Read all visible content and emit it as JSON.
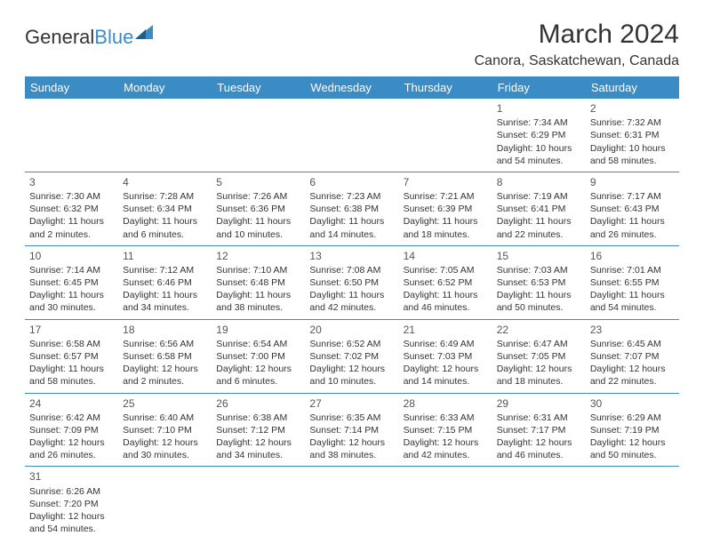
{
  "logo": {
    "part1": "General",
    "part2": "Blue"
  },
  "title": "March 2024",
  "location": "Canora, Saskatchewan, Canada",
  "colors": {
    "header_bg": "#3b8bc4",
    "header_text": "#ffffff",
    "border": "#3b8bc4",
    "text": "#333333",
    "background": "#ffffff"
  },
  "day_headers": [
    "Sunday",
    "Monday",
    "Tuesday",
    "Wednesday",
    "Thursday",
    "Friday",
    "Saturday"
  ],
  "weeks": [
    [
      null,
      null,
      null,
      null,
      null,
      {
        "n": "1",
        "sr": "Sunrise: 7:34 AM",
        "ss": "Sunset: 6:29 PM",
        "dl": "Daylight: 10 hours and 54 minutes."
      },
      {
        "n": "2",
        "sr": "Sunrise: 7:32 AM",
        "ss": "Sunset: 6:31 PM",
        "dl": "Daylight: 10 hours and 58 minutes."
      }
    ],
    [
      {
        "n": "3",
        "sr": "Sunrise: 7:30 AM",
        "ss": "Sunset: 6:32 PM",
        "dl": "Daylight: 11 hours and 2 minutes."
      },
      {
        "n": "4",
        "sr": "Sunrise: 7:28 AM",
        "ss": "Sunset: 6:34 PM",
        "dl": "Daylight: 11 hours and 6 minutes."
      },
      {
        "n": "5",
        "sr": "Sunrise: 7:26 AM",
        "ss": "Sunset: 6:36 PM",
        "dl": "Daylight: 11 hours and 10 minutes."
      },
      {
        "n": "6",
        "sr": "Sunrise: 7:23 AM",
        "ss": "Sunset: 6:38 PM",
        "dl": "Daylight: 11 hours and 14 minutes."
      },
      {
        "n": "7",
        "sr": "Sunrise: 7:21 AM",
        "ss": "Sunset: 6:39 PM",
        "dl": "Daylight: 11 hours and 18 minutes."
      },
      {
        "n": "8",
        "sr": "Sunrise: 7:19 AM",
        "ss": "Sunset: 6:41 PM",
        "dl": "Daylight: 11 hours and 22 minutes."
      },
      {
        "n": "9",
        "sr": "Sunrise: 7:17 AM",
        "ss": "Sunset: 6:43 PM",
        "dl": "Daylight: 11 hours and 26 minutes."
      }
    ],
    [
      {
        "n": "10",
        "sr": "Sunrise: 7:14 AM",
        "ss": "Sunset: 6:45 PM",
        "dl": "Daylight: 11 hours and 30 minutes."
      },
      {
        "n": "11",
        "sr": "Sunrise: 7:12 AM",
        "ss": "Sunset: 6:46 PM",
        "dl": "Daylight: 11 hours and 34 minutes."
      },
      {
        "n": "12",
        "sr": "Sunrise: 7:10 AM",
        "ss": "Sunset: 6:48 PM",
        "dl": "Daylight: 11 hours and 38 minutes."
      },
      {
        "n": "13",
        "sr": "Sunrise: 7:08 AM",
        "ss": "Sunset: 6:50 PM",
        "dl": "Daylight: 11 hours and 42 minutes."
      },
      {
        "n": "14",
        "sr": "Sunrise: 7:05 AM",
        "ss": "Sunset: 6:52 PM",
        "dl": "Daylight: 11 hours and 46 minutes."
      },
      {
        "n": "15",
        "sr": "Sunrise: 7:03 AM",
        "ss": "Sunset: 6:53 PM",
        "dl": "Daylight: 11 hours and 50 minutes."
      },
      {
        "n": "16",
        "sr": "Sunrise: 7:01 AM",
        "ss": "Sunset: 6:55 PM",
        "dl": "Daylight: 11 hours and 54 minutes."
      }
    ],
    [
      {
        "n": "17",
        "sr": "Sunrise: 6:58 AM",
        "ss": "Sunset: 6:57 PM",
        "dl": "Daylight: 11 hours and 58 minutes."
      },
      {
        "n": "18",
        "sr": "Sunrise: 6:56 AM",
        "ss": "Sunset: 6:58 PM",
        "dl": "Daylight: 12 hours and 2 minutes."
      },
      {
        "n": "19",
        "sr": "Sunrise: 6:54 AM",
        "ss": "Sunset: 7:00 PM",
        "dl": "Daylight: 12 hours and 6 minutes."
      },
      {
        "n": "20",
        "sr": "Sunrise: 6:52 AM",
        "ss": "Sunset: 7:02 PM",
        "dl": "Daylight: 12 hours and 10 minutes."
      },
      {
        "n": "21",
        "sr": "Sunrise: 6:49 AM",
        "ss": "Sunset: 7:03 PM",
        "dl": "Daylight: 12 hours and 14 minutes."
      },
      {
        "n": "22",
        "sr": "Sunrise: 6:47 AM",
        "ss": "Sunset: 7:05 PM",
        "dl": "Daylight: 12 hours and 18 minutes."
      },
      {
        "n": "23",
        "sr": "Sunrise: 6:45 AM",
        "ss": "Sunset: 7:07 PM",
        "dl": "Daylight: 12 hours and 22 minutes."
      }
    ],
    [
      {
        "n": "24",
        "sr": "Sunrise: 6:42 AM",
        "ss": "Sunset: 7:09 PM",
        "dl": "Daylight: 12 hours and 26 minutes."
      },
      {
        "n": "25",
        "sr": "Sunrise: 6:40 AM",
        "ss": "Sunset: 7:10 PM",
        "dl": "Daylight: 12 hours and 30 minutes."
      },
      {
        "n": "26",
        "sr": "Sunrise: 6:38 AM",
        "ss": "Sunset: 7:12 PM",
        "dl": "Daylight: 12 hours and 34 minutes."
      },
      {
        "n": "27",
        "sr": "Sunrise: 6:35 AM",
        "ss": "Sunset: 7:14 PM",
        "dl": "Daylight: 12 hours and 38 minutes."
      },
      {
        "n": "28",
        "sr": "Sunrise: 6:33 AM",
        "ss": "Sunset: 7:15 PM",
        "dl": "Daylight: 12 hours and 42 minutes."
      },
      {
        "n": "29",
        "sr": "Sunrise: 6:31 AM",
        "ss": "Sunset: 7:17 PM",
        "dl": "Daylight: 12 hours and 46 minutes."
      },
      {
        "n": "30",
        "sr": "Sunrise: 6:29 AM",
        "ss": "Sunset: 7:19 PM",
        "dl": "Daylight: 12 hours and 50 minutes."
      }
    ],
    [
      {
        "n": "31",
        "sr": "Sunrise: 6:26 AM",
        "ss": "Sunset: 7:20 PM",
        "dl": "Daylight: 12 hours and 54 minutes."
      },
      null,
      null,
      null,
      null,
      null,
      null
    ]
  ]
}
